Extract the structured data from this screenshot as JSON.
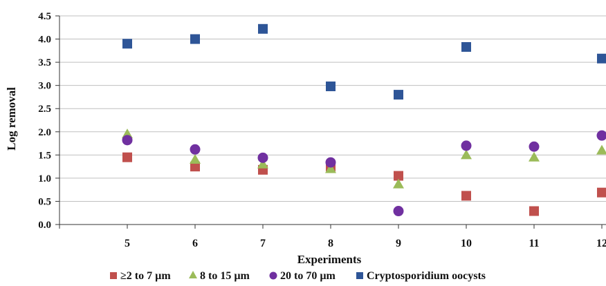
{
  "chart_data": {
    "type": "scatter",
    "xlabel": "Experiments",
    "ylabel": "Log removal",
    "x_ticks": [
      "5",
      "6",
      "7",
      "8",
      "9",
      "10",
      "11",
      "12"
    ],
    "y_ticks": [
      "0.0",
      "0.5",
      "1.0",
      "1.5",
      "2.0",
      "2.5",
      "3.0",
      "3.5",
      "4.0",
      "4.5"
    ],
    "xlim": [
      4,
      12
    ],
    "ylim": [
      0,
      4.5
    ],
    "grid": "horizontal",
    "legend_position": "bottom",
    "series": [
      {
        "name": "≥2 to 7 µm",
        "marker": "square",
        "color": "#C0504D",
        "points": [
          [
            5,
            1.45
          ],
          [
            6,
            1.25
          ],
          [
            7,
            1.18
          ],
          [
            8,
            1.25
          ],
          [
            9,
            1.05
          ],
          [
            10,
            0.62
          ],
          [
            11,
            0.29
          ],
          [
            12,
            0.69
          ]
        ]
      },
      {
        "name": "8 to 15 µm",
        "marker": "triangle",
        "color": "#9BBB59",
        "points": [
          [
            5,
            1.95
          ],
          [
            6,
            1.4
          ],
          [
            7,
            1.3
          ],
          [
            8,
            1.2
          ],
          [
            9,
            0.87
          ],
          [
            10,
            1.5
          ],
          [
            11,
            1.45
          ],
          [
            12,
            1.6
          ]
        ]
      },
      {
        "name": "20 to 70 µm",
        "marker": "circle",
        "color": "#7030A0",
        "points": [
          [
            5,
            1.82
          ],
          [
            6,
            1.62
          ],
          [
            7,
            1.44
          ],
          [
            8,
            1.34
          ],
          [
            9,
            0.29
          ],
          [
            10,
            1.7
          ],
          [
            11,
            1.68
          ],
          [
            12,
            1.92
          ]
        ]
      },
      {
        "name": "Cryptosporidium oocysts",
        "marker": "square",
        "color": "#2E5597",
        "points": [
          [
            5,
            3.9
          ],
          [
            6,
            4.0
          ],
          [
            7,
            4.22
          ],
          [
            8,
            2.98
          ],
          [
            9,
            2.8
          ],
          [
            10,
            3.83
          ],
          [
            12,
            3.58
          ]
        ]
      }
    ]
  }
}
